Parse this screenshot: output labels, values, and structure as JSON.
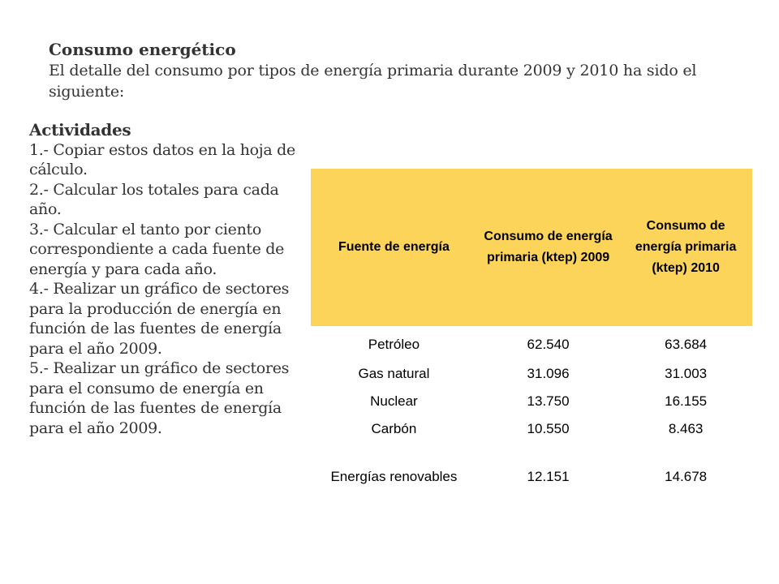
{
  "heading": {
    "title": "Consumo energético",
    "intro": "El detalle del consumo por tipos de energía primaria durante 2009 y 2010 ha sido el siguiente:"
  },
  "activities": {
    "title": "Actividades",
    "items": [
      "1.- Copiar estos datos en la hoja de cálculo.",
      "2.- Calcular los totales para cada año.",
      "3.- Calcular el tanto por ciento correspondiente a cada fuente de energía y para cada año.",
      "4.- Realizar un gráfico de sectores para la producción de energía en función de las fuentes de energía para el año 2009.",
      "5.- Realizar un gráfico de sectores para el consumo de energía en función de las fuentes de energía para el año 2009."
    ]
  },
  "table": {
    "header_color": "#fdd45a",
    "headers": [
      "Fuente de energía",
      "Consumo de energía primaria (ktep) 2009",
      "Consumo de energía primaria (ktep) 2010"
    ],
    "rows": [
      {
        "source": "Petróleo",
        "y2009": "62.540",
        "y2010": "63.684"
      },
      {
        "source": "Gas natural",
        "y2009": "31.096",
        "y2010": "31.003"
      },
      {
        "source": "Nuclear",
        "y2009": "13.750",
        "y2010": "16.155"
      },
      {
        "source": "Carbón",
        "y2009": "10.550",
        "y2010": "8.463"
      },
      {
        "source": "Energías renovables",
        "y2009": "12.151",
        "y2010": "14.678"
      }
    ]
  }
}
